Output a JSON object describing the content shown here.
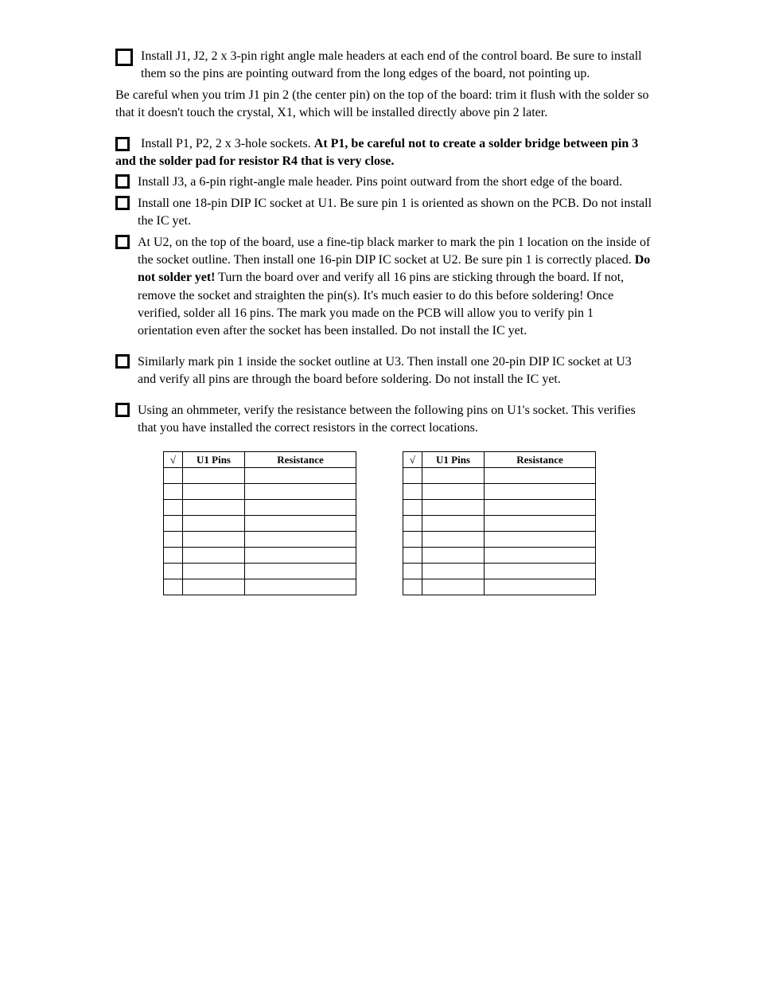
{
  "step1": {
    "lead": "Install J1, J2, 2 x 3-pin right angle male headers at each end of the control board. Be sure to install them so the pins are pointing outward from the long edges of the board, not pointing up.",
    "note": "Be careful when you trim J1 pin 2 (the center pin) on the top of the board: trim it flush with the solder so that it doesn't touch the crystal, X1, which will be installed directly above pin 2 later."
  },
  "step2": {
    "text": "Install P1, P2, 2 x 3-hole sockets. ",
    "bold": "At P1, be careful not to create a solder bridge between pin 3 and the solder pad for resistor R4 that is very close."
  },
  "step3": "Install J3, a 6-pin right-angle male header. Pins point outward from the short edge of the board.",
  "step4": "Install one 18-pin DIP IC socket at U1. Be sure pin 1 is oriented as shown on the PCB. Do not install the IC yet.",
  "step5": {
    "text1": "At U2, on the top of the board, use a fine-tip black marker to mark the pin 1 location on the inside of the socket outline. Then install one 16-pin DIP IC socket at U2. Be sure pin 1 is correctly placed. ",
    "bold": "Do not solder yet!",
    "text2": " Turn the board over and verify all 16 pins are sticking through the board. If not, remove the socket and straighten the pin(s). It's much easier to do this before soldering! Once verified, solder all 16 pins. The mark you made on the PCB will allow you to verify pin 1 orientation even after the socket has been installed. Do not install the IC yet."
  },
  "step6": "Similarly mark pin 1 inside the socket outline at U3. Then install one 20-pin DIP IC socket at U3 and verify all pins are through the board before soldering. Do not install the IC yet.",
  "step7": "Using an ohmmeter, verify the resistance between the following pins on U1's socket. This verifies that you have installed the correct resistors in the correct locations.",
  "table": {
    "headers": {
      "check": "√",
      "pins": "U1 Pins",
      "res": "Resistance"
    },
    "rows": 8
  }
}
